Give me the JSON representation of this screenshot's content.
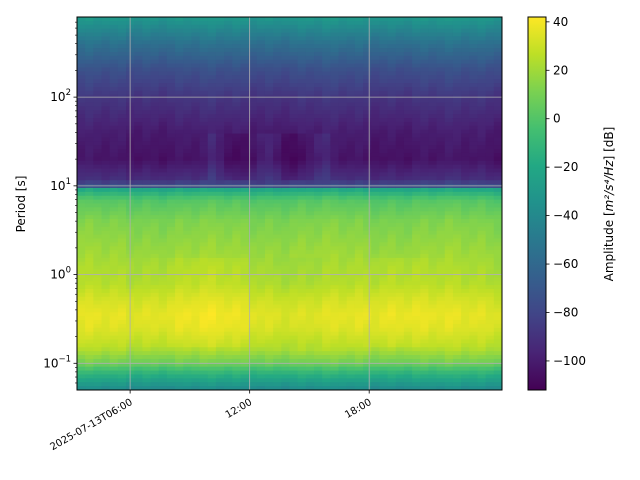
{
  "chart_data": {
    "type": "heatmap",
    "title": "",
    "ylabel": "Period [s]",
    "y_scale": "log",
    "ylim": [
      0.05,
      800
    ],
    "y_ticks": [
      {
        "value": 0.1,
        "base": "10",
        "exp": "−1"
      },
      {
        "value": 1,
        "base": "10",
        "exp": "0"
      },
      {
        "value": 10,
        "base": "10",
        "exp": "1"
      },
      {
        "value": 100,
        "base": "10",
        "exp": "2"
      }
    ],
    "xlim": [
      "2025-07-13T03:20",
      "2025-07-14T00:40"
    ],
    "x_ticks": [
      {
        "value": "2025-07-13T06:00",
        "label": "2025-07-13T06:00"
      },
      {
        "value": "2025-07-13T12:00",
        "label": "12:00"
      },
      {
        "value": "2025-07-13T18:00",
        "label": "18:00"
      }
    ],
    "grid": true,
    "colormap": "viridis",
    "colorbar": {
      "label_text": "Amplitude [",
      "label_math": "m²/s⁴/Hz",
      "label_suffix": "] [dB]",
      "range": [
        -112,
        42
      ],
      "ticks": [
        "40",
        "20",
        "0",
        "−20",
        "−40",
        "−60",
        "−80",
        "−100"
      ]
    },
    "amplitude_profile": {
      "period_s": [
        0.05,
        0.08,
        0.1,
        0.15,
        0.25,
        0.35,
        0.5,
        0.8,
        1.2,
        2,
        4,
        7,
        9,
        9.5,
        12,
        20,
        40,
        100,
        200,
        400,
        800
      ],
      "db": [
        -40,
        -10,
        8,
        25,
        34,
        36,
        32,
        24,
        22,
        18,
        12,
        0,
        -20,
        -70,
        -92,
        -104,
        -100,
        -88,
        -75,
        -55,
        -30
      ]
    }
  }
}
